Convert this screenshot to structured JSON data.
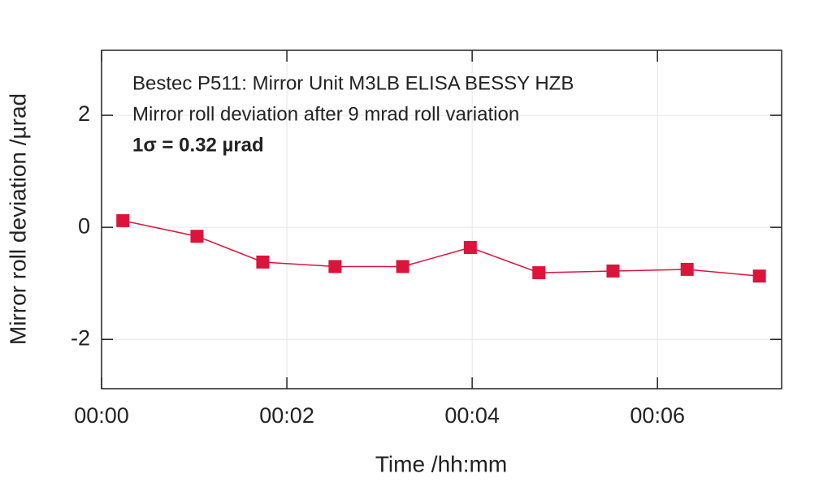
{
  "chart_data": {
    "type": "line",
    "annotations": [
      "Bestec P511: Mirror Unit M3LB ELISA BESSY HZB",
      "Mirror roll deviation after 9 mrad roll variation",
      "1σ = 0.32 µrad"
    ],
    "xlabel": "Time /hh:mm",
    "ylabel": "Mirror roll deviation /µrad",
    "x": [
      0.23,
      1.03,
      1.74,
      2.52,
      3.25,
      3.98,
      4.72,
      5.52,
      6.32,
      7.1
    ],
    "series": [
      {
        "name": "Mirror roll deviation",
        "color": "#dc143c",
        "values": [
          0.12,
          -0.16,
          -0.62,
          -0.7,
          -0.7,
          -0.36,
          -0.81,
          -0.78,
          -0.75,
          -0.87
        ]
      }
    ],
    "xlim": [
      0,
      7.34
    ],
    "ylim": [
      -2.88,
      3.16
    ],
    "xticks": [
      {
        "value": 0,
        "label": "00:00"
      },
      {
        "value": 2,
        "label": "00:02"
      },
      {
        "value": 4,
        "label": "00:04"
      },
      {
        "value": 6,
        "label": "00:06"
      }
    ],
    "yticks": [
      2,
      0,
      -2
    ],
    "grid": true
  }
}
